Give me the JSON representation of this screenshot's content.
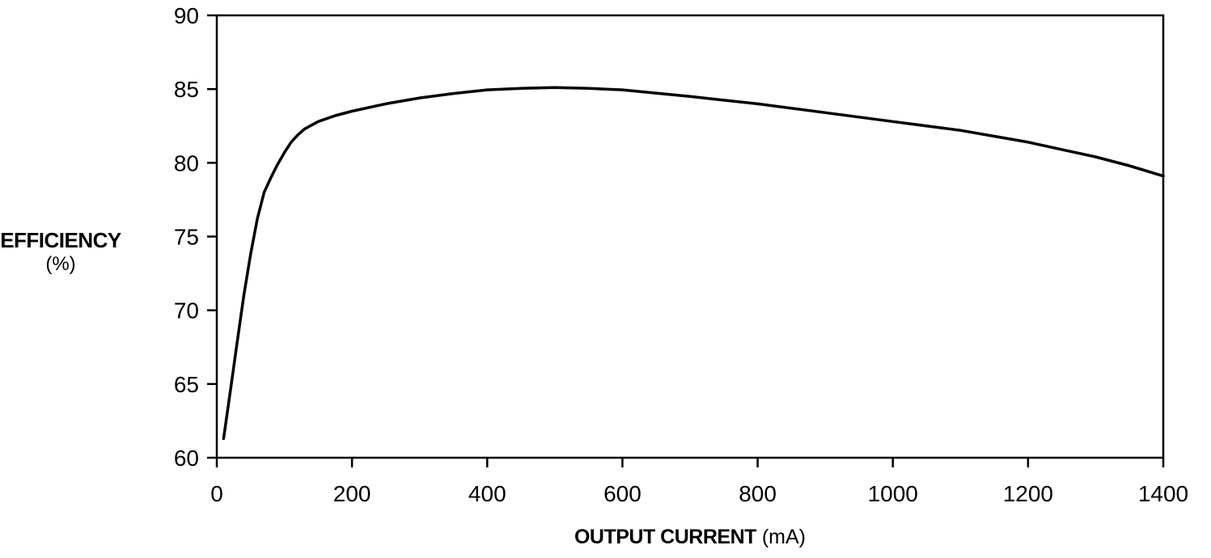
{
  "chart_data": {
    "type": "line",
    "title": "",
    "ylabel": "EFFICIENCY",
    "ylabel_unit": "(%)",
    "xlabel": "OUTPUT CURRENT",
    "xlabel_unit": "(mA)",
    "xlim": [
      0,
      1400
    ],
    "ylim": [
      60,
      90
    ],
    "xticks": [
      0,
      200,
      400,
      600,
      800,
      1000,
      1200,
      1400
    ],
    "yticks": [
      60,
      65,
      70,
      75,
      80,
      85,
      90
    ],
    "grid": false,
    "series": [
      {
        "color": "#000000",
        "x": [
          10,
          20,
          30,
          40,
          50,
          60,
          70,
          80,
          90,
          100,
          110,
          120,
          130,
          150,
          175,
          200,
          250,
          300,
          350,
          400,
          450,
          500,
          550,
          600,
          700,
          800,
          900,
          1000,
          1100,
          1150,
          1200,
          1250,
          1300,
          1350,
          1400
        ],
        "y": [
          61.3,
          64.5,
          67.8,
          71.0,
          73.8,
          76.2,
          78.0,
          79.0,
          79.9,
          80.7,
          81.4,
          81.9,
          82.3,
          82.8,
          83.2,
          83.5,
          84.0,
          84.4,
          84.7,
          84.95,
          85.05,
          85.1,
          85.05,
          84.95,
          84.5,
          84.0,
          83.4,
          82.8,
          82.2,
          81.8,
          81.4,
          80.9,
          80.4,
          79.8,
          79.1
        ]
      }
    ]
  }
}
